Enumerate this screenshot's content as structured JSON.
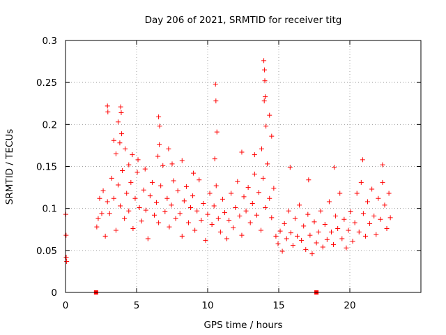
{
  "chart_data": {
    "type": "scatter",
    "title": "Day 206 of 2021, SRMTID for receiver titg",
    "xlabel": "GPS time / hours",
    "ylabel": "SRMTID / TECUs",
    "xlim": [
      0,
      25
    ],
    "ylim": [
      0,
      0.3
    ],
    "x_ticks": [
      "0",
      "5",
      "10",
      "15",
      "20"
    ],
    "y_ticks": [
      "0",
      "0.05",
      "0.1",
      "0.15",
      "0.2",
      "0.25",
      "0.3"
    ],
    "grid": true,
    "legend": "none",
    "colors": {
      "marker": "#ff0000",
      "grid": "#a0a0a0",
      "axis": "#000000"
    },
    "marker": "plus",
    "gap_markers_x": [
      2.15,
      17.65
    ],
    "series": [
      {
        "values": [
          [
            0.02,
            0.093
          ],
          [
            0.04,
            0.068
          ],
          [
            0.05,
            0.042
          ],
          [
            0.08,
            0.037
          ],
          [
            2.2,
            0.078
          ],
          [
            2.3,
            0.088
          ],
          [
            2.4,
            0.112
          ],
          [
            2.55,
            0.094
          ],
          [
            2.65,
            0.121
          ],
          [
            2.8,
            0.067
          ],
          [
            2.95,
            0.108
          ],
          [
            3.1,
            0.094
          ],
          [
            3.25,
            0.136
          ],
          [
            3.4,
            0.112
          ],
          [
            3.55,
            0.074
          ],
          [
            3.7,
            0.128
          ],
          [
            3.85,
            0.103
          ],
          [
            4.0,
            0.145
          ],
          [
            4.15,
            0.088
          ],
          [
            4.3,
            0.118
          ],
          [
            4.45,
            0.097
          ],
          [
            4.6,
            0.131
          ],
          [
            4.75,
            0.076
          ],
          [
            4.9,
            0.112
          ],
          [
            5.05,
            0.143
          ],
          [
            5.2,
            0.101
          ],
          [
            5.35,
            0.085
          ],
          [
            5.5,
            0.122
          ],
          [
            5.65,
            0.098
          ],
          [
            5.8,
            0.064
          ],
          [
            5.95,
            0.115
          ],
          [
            6.1,
            0.131
          ],
          [
            6.25,
            0.092
          ],
          [
            6.4,
            0.107
          ],
          [
            6.55,
            0.083
          ],
          [
            6.7,
            0.127
          ],
          [
            6.85,
            0.151
          ],
          [
            7.0,
            0.096
          ],
          [
            7.15,
            0.112
          ],
          [
            7.3,
            0.078
          ],
          [
            7.45,
            0.104
          ],
          [
            7.6,
            0.133
          ],
          [
            7.75,
            0.088
          ],
          [
            7.9,
            0.121
          ],
          [
            8.05,
            0.094
          ],
          [
            8.2,
            0.067
          ],
          [
            8.35,
            0.109
          ],
          [
            8.5,
            0.126
          ],
          [
            8.65,
            0.083
          ],
          [
            8.8,
            0.101
          ],
          [
            8.95,
            0.115
          ],
          [
            9.1,
            0.074
          ],
          [
            9.25,
            0.097
          ],
          [
            9.4,
            0.134
          ],
          [
            9.55,
            0.086
          ],
          [
            9.7,
            0.106
          ],
          [
            9.85,
            0.062
          ],
          [
            10.0,
            0.093
          ],
          [
            10.15,
            0.118
          ],
          [
            10.3,
            0.081
          ],
          [
            10.45,
            0.103
          ],
          [
            10.6,
            0.127
          ],
          [
            10.75,
            0.088
          ],
          [
            10.9,
            0.072
          ],
          [
            11.05,
            0.111
          ],
          [
            11.2,
            0.095
          ],
          [
            11.35,
            0.064
          ],
          [
            11.5,
            0.086
          ],
          [
            11.65,
            0.118
          ],
          [
            11.8,
            0.077
          ],
          [
            11.95,
            0.101
          ],
          [
            12.1,
            0.132
          ],
          [
            12.25,
            0.091
          ],
          [
            12.4,
            0.068
          ],
          [
            12.55,
            0.114
          ],
          [
            12.7,
            0.097
          ],
          [
            12.85,
            0.125
          ],
          [
            13.0,
            0.083
          ],
          [
            13.15,
            0.106
          ],
          [
            13.3,
            0.141
          ],
          [
            13.45,
            0.092
          ],
          [
            13.6,
            0.119
          ],
          [
            13.75,
            0.074
          ],
          [
            13.9,
            0.136
          ],
          [
            14.05,
            0.101
          ],
          [
            14.2,
            0.153
          ],
          [
            14.35,
            0.112
          ],
          [
            14.5,
            0.089
          ],
          [
            14.65,
            0.124
          ],
          [
            14.8,
            0.067
          ],
          [
            14.95,
            0.058
          ],
          [
            15.1,
            0.073
          ],
          [
            15.25,
            0.049
          ],
          [
            15.4,
            0.082
          ],
          [
            15.55,
            0.064
          ],
          [
            15.7,
            0.097
          ],
          [
            15.85,
            0.071
          ],
          [
            16.0,
            0.056
          ],
          [
            16.15,
            0.088
          ],
          [
            16.3,
            0.067
          ],
          [
            16.45,
            0.104
          ],
          [
            16.6,
            0.062
          ],
          [
            16.75,
            0.079
          ],
          [
            16.9,
            0.051
          ],
          [
            17.05,
            0.093
          ],
          [
            17.2,
            0.068
          ],
          [
            17.35,
            0.046
          ],
          [
            17.5,
            0.084
          ],
          [
            17.65,
            0.059
          ],
          [
            17.8,
            0.072
          ],
          [
            17.95,
            0.097
          ],
          [
            18.1,
            0.054
          ],
          [
            18.25,
            0.081
          ],
          [
            18.4,
            0.063
          ],
          [
            18.55,
            0.108
          ],
          [
            18.7,
            0.072
          ],
          [
            18.85,
            0.057
          ],
          [
            19.0,
            0.091
          ],
          [
            19.15,
            0.076
          ],
          [
            19.3,
            0.118
          ],
          [
            19.45,
            0.064
          ],
          [
            19.6,
            0.087
          ],
          [
            19.75,
            0.053
          ],
          [
            19.9,
            0.074
          ],
          [
            20.05,
            0.096
          ],
          [
            20.2,
            0.061
          ],
          [
            20.35,
            0.083
          ],
          [
            20.5,
            0.118
          ],
          [
            20.65,
            0.072
          ],
          [
            20.8,
            0.131
          ],
          [
            20.95,
            0.094
          ],
          [
            21.1,
            0.067
          ],
          [
            21.25,
            0.108
          ],
          [
            21.4,
            0.082
          ],
          [
            21.55,
            0.123
          ],
          [
            21.7,
            0.091
          ],
          [
            21.85,
            0.069
          ],
          [
            22.0,
            0.112
          ],
          [
            22.15,
            0.087
          ],
          [
            22.3,
            0.131
          ],
          [
            22.45,
            0.104
          ],
          [
            22.6,
            0.076
          ],
          [
            22.75,
            0.118
          ],
          [
            22.85,
            0.089
          ],
          [
            3.4,
            0.181
          ],
          [
            3.55,
            0.165
          ],
          [
            3.7,
            0.203
          ],
          [
            3.82,
            0.178
          ],
          [
            3.95,
            0.189
          ],
          [
            4.2,
            0.171
          ],
          [
            4.45,
            0.152
          ],
          [
            4.7,
            0.164
          ],
          [
            5.1,
            0.158
          ],
          [
            5.6,
            0.147
          ],
          [
            6.5,
            0.162
          ],
          [
            6.6,
            0.176
          ],
          [
            7.25,
            0.171
          ],
          [
            7.5,
            0.153
          ],
          [
            8.2,
            0.157
          ],
          [
            9.0,
            0.142
          ],
          [
            10.5,
            0.159
          ],
          [
            10.65,
            0.191
          ],
          [
            12.4,
            0.167
          ],
          [
            13.3,
            0.164
          ],
          [
            13.8,
            0.171
          ],
          [
            14.05,
            0.233
          ],
          [
            14.35,
            0.211
          ],
          [
            14.5,
            0.186
          ],
          [
            14.1,
            0.198
          ],
          [
            15.8,
            0.149
          ],
          [
            17.1,
            0.134
          ],
          [
            18.9,
            0.149
          ],
          [
            20.9,
            0.158
          ],
          [
            22.3,
            0.152
          ],
          [
            3.88,
            0.221
          ],
          [
            3.92,
            0.214
          ],
          [
            2.95,
            0.222
          ],
          [
            2.98,
            0.215
          ],
          [
            10.55,
            0.248
          ],
          [
            10.58,
            0.228
          ],
          [
            13.95,
            0.276
          ],
          [
            14.0,
            0.265
          ],
          [
            14.02,
            0.252
          ],
          [
            13.98,
            0.228
          ],
          [
            6.55,
            0.209
          ],
          [
            6.62,
            0.198
          ]
        ]
      }
    ]
  }
}
